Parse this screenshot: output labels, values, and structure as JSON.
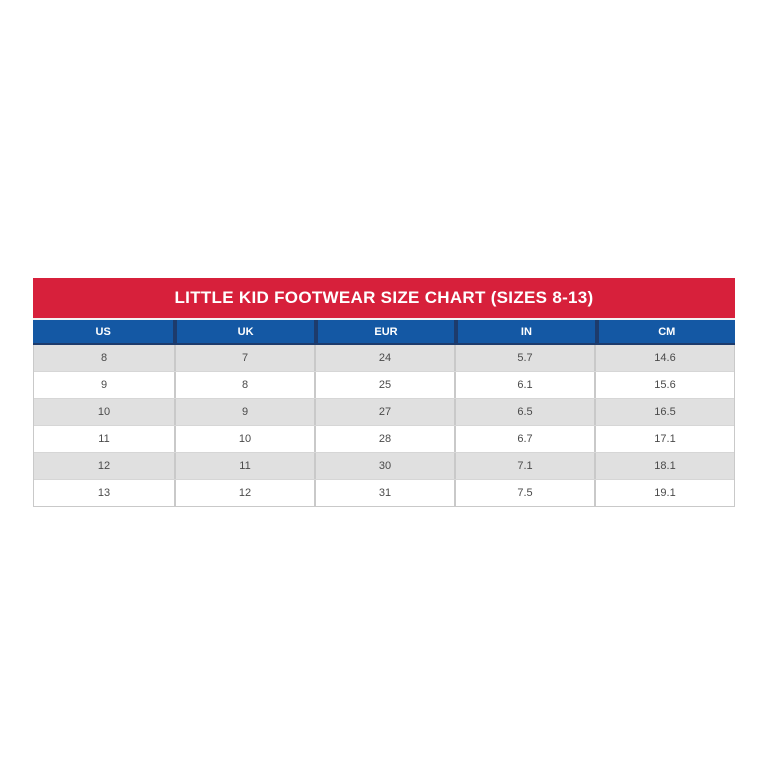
{
  "size_chart": {
    "title": "LITTLE KID FOOTWEAR SIZE CHART (SIZES 8-13)",
    "columns": [
      "US",
      "UK",
      "EUR",
      "IN",
      "CM"
    ],
    "rows": [
      [
        "8",
        "7",
        "24",
        "5.7",
        "14.6"
      ],
      [
        "9",
        "8",
        "25",
        "6.1",
        "15.6"
      ],
      [
        "10",
        "9",
        "27",
        "6.5",
        "16.5"
      ],
      [
        "11",
        "10",
        "28",
        "6.7",
        "17.1"
      ],
      [
        "12",
        "11",
        "30",
        "7.1",
        "18.1"
      ],
      [
        "13",
        "12",
        "31",
        "7.5",
        "19.1"
      ]
    ],
    "colors": {
      "title_bg": "#d7203b",
      "title_text": "#ffffff",
      "header_bg": "#1458a4",
      "header_text": "#ffffff",
      "header_divider": "#1d3b6c",
      "row_alt_bg": "#e0e0e0",
      "row_bg": "#ffffff",
      "cell_text": "#4a4a4a",
      "cell_border": "#c9c9c9",
      "page_bg": "#ffffff"
    }
  },
  "chart_data": {
    "type": "table",
    "title": "LITTLE KID FOOTWEAR SIZE CHART (SIZES 8-13)",
    "columns": [
      "US",
      "UK",
      "EUR",
      "IN",
      "CM"
    ],
    "rows": [
      [
        8,
        7,
        24,
        5.7,
        14.6
      ],
      [
        9,
        8,
        25,
        6.1,
        15.6
      ],
      [
        10,
        9,
        27,
        6.5,
        16.5
      ],
      [
        11,
        10,
        28,
        6.7,
        17.1
      ],
      [
        12,
        11,
        30,
        7.1,
        18.1
      ],
      [
        13,
        12,
        31,
        7.5,
        19.1
      ]
    ],
    "layout": {
      "striped_rows": true,
      "stripe_pattern": "odd-rows-gray",
      "column_alignment": "center",
      "legend_position": "none",
      "grid": "on"
    }
  }
}
